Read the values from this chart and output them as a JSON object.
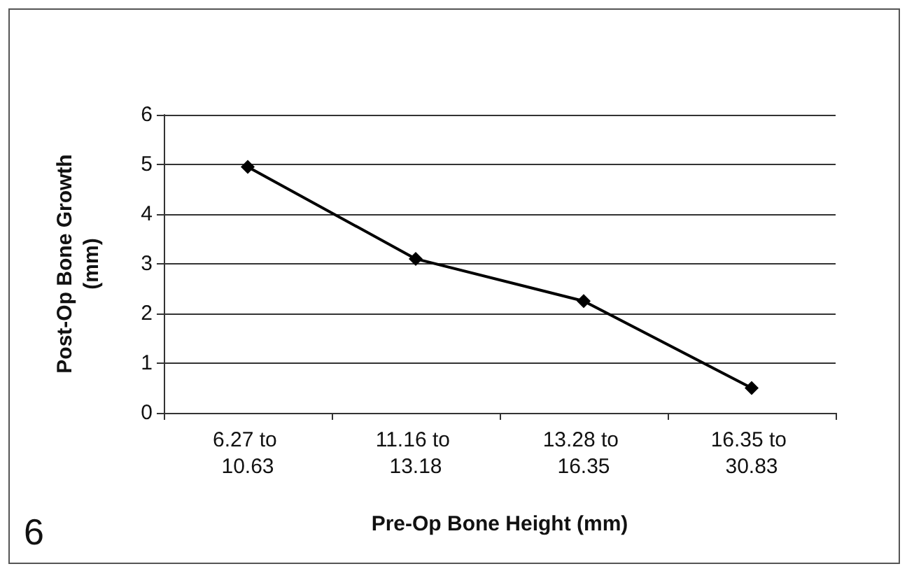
{
  "chart_data": {
    "type": "line",
    "xlabel": "Pre-Op Bone Height (mm)",
    "ylabel": "Post-Op Bone Growth (mm)",
    "categories": [
      "6.27 to 10.63",
      "11.16 to 13.18",
      "13.28 to 16.35",
      "16.35 to 30.83"
    ],
    "series": [
      {
        "color": "#000000",
        "values": [
          4.95,
          3.1,
          2.25,
          0.5
        ]
      }
    ],
    "ylim": [
      0,
      6
    ],
    "yticks": [
      0,
      1,
      2,
      3,
      4,
      5,
      6
    ],
    "grid": "y",
    "marker": "diamond",
    "line_style": "solid",
    "annotations": [
      "6"
    ]
  }
}
